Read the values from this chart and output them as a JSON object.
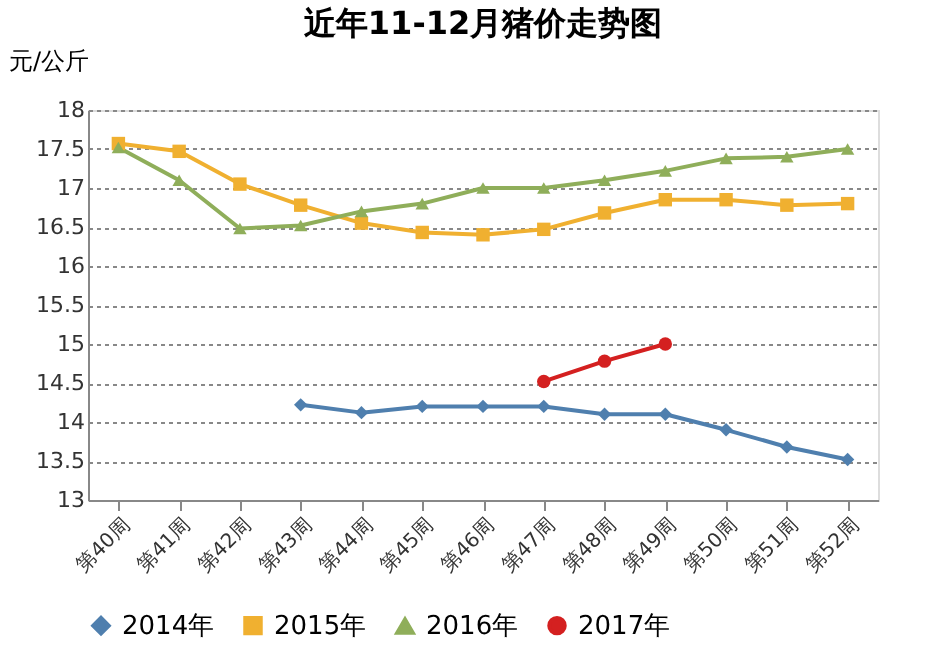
{
  "chart_data": {
    "type": "line",
    "title": "近年11-12月猪价走势图",
    "ylabel": "元/公斤",
    "categories": [
      "第40周",
      "第41周",
      "第42周",
      "第43周",
      "第44周",
      "第45周",
      "第46周",
      "第47周",
      "第48周",
      "第49周",
      "第50周",
      "第51周",
      "第52周"
    ],
    "series": [
      {
        "name": "2014年",
        "color": "#4f7fae",
        "marker": "diamond",
        "values": [
          null,
          null,
          null,
          14.22,
          14.12,
          14.2,
          14.2,
          14.2,
          14.1,
          14.1,
          13.9,
          13.68,
          13.52
        ]
      },
      {
        "name": "2015年",
        "color": "#f0b030",
        "marker": "square",
        "values": [
          17.57,
          17.47,
          17.05,
          16.78,
          16.55,
          16.43,
          16.4,
          16.47,
          16.68,
          16.85,
          16.85,
          16.78,
          16.8
        ]
      },
      {
        "name": "2016年",
        "color": "#8fae5a",
        "marker": "triangle",
        "values": [
          17.52,
          17.1,
          16.48,
          16.52,
          16.7,
          16.8,
          17.0,
          17.0,
          17.1,
          17.22,
          17.38,
          17.4,
          17.5
        ]
      },
      {
        "name": "2017年",
        "color": "#d42020",
        "marker": "circle",
        "values": [
          null,
          null,
          null,
          null,
          null,
          null,
          null,
          14.52,
          14.78,
          15.0,
          null,
          null,
          null
        ]
      }
    ],
    "ylim": [
      13,
      18
    ],
    "yticks": [
      13,
      13.5,
      14,
      14.5,
      15,
      15.5,
      16,
      16.5,
      17,
      17.5,
      18
    ],
    "grid": "y",
    "legend": "bottom"
  }
}
